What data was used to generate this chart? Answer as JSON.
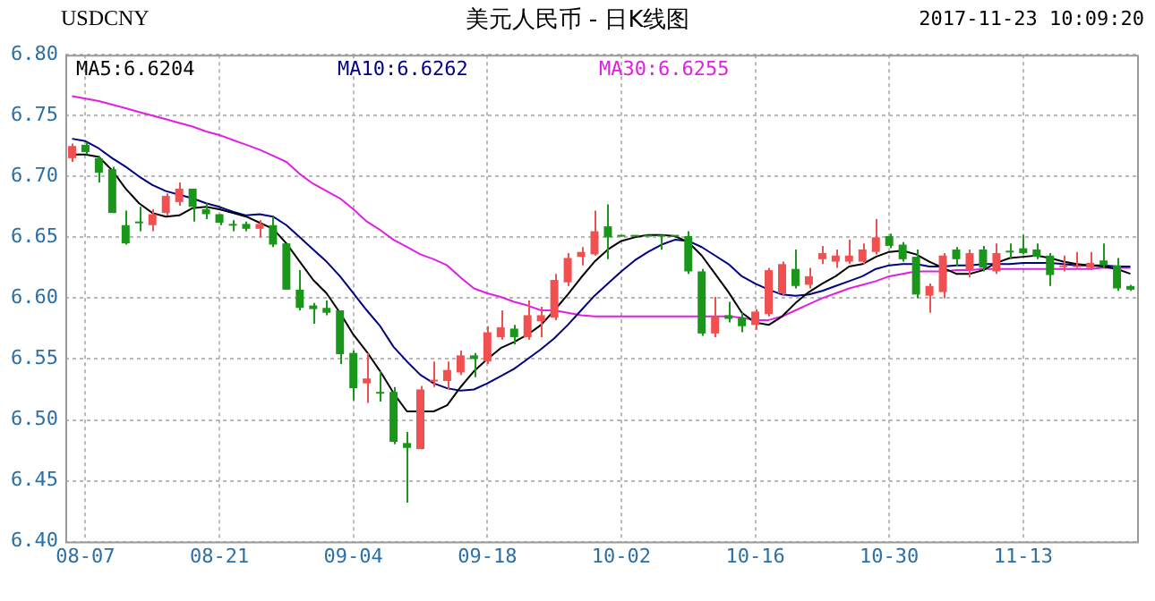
{
  "chart_data": {
    "type": "candlestick",
    "title": "美元人民币 - 日K线图",
    "annotations": [
      "USDCNY",
      "2017-11-23 10:09:20"
    ],
    "categories": [
      null,
      "08-07",
      null,
      null,
      null,
      null,
      null,
      null,
      null,
      null,
      null,
      "08-21",
      null,
      null,
      null,
      null,
      null,
      null,
      null,
      null,
      null,
      "09-04",
      null,
      null,
      null,
      null,
      null,
      null,
      null,
      null,
      null,
      "09-18",
      null,
      null,
      null,
      null,
      null,
      null,
      null,
      null,
      null,
      "10-02",
      null,
      null,
      null,
      null,
      null,
      null,
      null,
      null,
      null,
      "10-16",
      null,
      null,
      null,
      null,
      null,
      null,
      null,
      null,
      null,
      "10-30",
      null,
      null,
      null,
      null,
      null,
      null,
      null,
      null,
      null,
      "11-13",
      null,
      null,
      null,
      null,
      null,
      null,
      null,
      null
    ],
    "ohlc": [
      [
        6.715,
        6.727,
        6.712,
        6.725
      ],
      [
        6.726,
        6.728,
        6.718,
        6.72
      ],
      [
        6.715,
        6.717,
        6.695,
        6.703
      ],
      [
        6.706,
        6.708,
        6.67,
        6.67
      ],
      [
        6.66,
        6.672,
        6.644,
        6.645
      ],
      [
        6.663,
        6.675,
        6.655,
        6.662
      ],
      [
        6.66,
        6.673,
        6.655,
        6.669
      ],
      [
        6.67,
        6.686,
        6.668,
        6.684
      ],
      [
        6.679,
        6.695,
        6.676,
        6.69
      ],
      [
        6.69,
        6.69,
        6.663,
        6.675
      ],
      [
        6.673,
        6.678,
        6.665,
        6.669
      ],
      [
        6.669,
        6.669,
        6.66,
        6.662
      ],
      [
        6.661,
        6.664,
        6.655,
        6.66
      ],
      [
        6.661,
        6.663,
        6.655,
        6.657
      ],
      [
        6.657,
        6.664,
        6.65,
        6.661
      ],
      [
        6.66,
        6.667,
        6.642,
        6.644
      ],
      [
        6.645,
        6.645,
        6.607,
        6.607
      ],
      [
        6.607,
        6.623,
        6.59,
        6.592
      ],
      [
        6.594,
        6.596,
        6.579,
        6.591
      ],
      [
        6.592,
        6.598,
        6.586,
        6.588
      ],
      [
        6.59,
        6.59,
        6.546,
        6.554
      ],
      [
        6.555,
        6.557,
        6.516,
        6.526
      ],
      [
        6.53,
        6.555,
        6.514,
        6.534
      ],
      [
        6.523,
        6.54,
        6.515,
        6.522
      ],
      [
        6.523,
        6.527,
        6.48,
        6.482
      ],
      [
        6.481,
        6.49,
        6.432,
        6.477
      ],
      [
        6.476,
        6.528,
        6.476,
        6.525
      ],
      [
        6.532,
        6.548,
        6.527,
        6.533
      ],
      [
        6.532,
        6.548,
        6.525,
        6.541
      ],
      [
        6.539,
        6.557,
        6.537,
        6.553
      ],
      [
        6.553,
        6.555,
        6.535,
        6.55
      ],
      [
        6.548,
        6.577,
        6.546,
        6.572
      ],
      [
        6.568,
        6.59,
        6.566,
        6.576
      ],
      [
        6.575,
        6.578,
        6.562,
        6.568
      ],
      [
        6.568,
        6.598,
        6.566,
        6.586
      ],
      [
        6.581,
        6.593,
        6.568,
        6.586
      ],
      [
        6.584,
        6.62,
        6.582,
        6.615
      ],
      [
        6.613,
        6.637,
        6.61,
        6.633
      ],
      [
        6.634,
        6.642,
        6.627,
        6.638
      ],
      [
        6.636,
        6.672,
        6.635,
        6.655
      ],
      [
        6.659,
        6.677,
        6.632,
        6.65
      ],
      [
        6.652,
        6.652,
        6.652,
        6.652
      ],
      [
        6.652,
        6.652,
        6.652,
        6.652
      ],
      [
        6.652,
        6.652,
        6.652,
        6.652
      ],
      [
        6.652,
        6.652,
        6.64,
        6.651
      ],
      [
        6.652,
        6.652,
        6.652,
        6.652
      ],
      [
        6.651,
        6.655,
        6.62,
        6.622
      ],
      [
        6.622,
        6.624,
        6.569,
        6.571
      ],
      [
        6.571,
        6.601,
        6.568,
        6.585
      ],
      [
        6.586,
        6.597,
        6.58,
        6.583
      ],
      [
        6.584,
        6.588,
        6.572,
        6.577
      ],
      [
        6.578,
        6.591,
        6.574,
        6.589
      ],
      [
        6.587,
        6.625,
        6.585,
        6.623
      ],
      [
        6.604,
        6.63,
        6.602,
        6.628
      ],
      [
        6.624,
        6.64,
        6.608,
        6.61
      ],
      [
        6.611,
        6.625,
        6.608,
        6.618
      ],
      [
        6.632,
        6.643,
        6.628,
        6.637
      ],
      [
        6.63,
        6.64,
        6.625,
        6.635
      ],
      [
        6.63,
        6.648,
        6.628,
        6.635
      ],
      [
        6.63,
        6.645,
        6.628,
        6.64
      ],
      [
        6.638,
        6.665,
        6.636,
        6.65
      ],
      [
        6.651,
        6.653,
        6.641,
        6.643
      ],
      [
        6.644,
        6.646,
        6.63,
        6.632
      ],
      [
        6.634,
        6.64,
        6.6,
        6.603
      ],
      [
        6.602,
        6.612,
        6.588,
        6.61
      ],
      [
        6.605,
        6.637,
        6.6,
        6.635
      ],
      [
        6.64,
        6.642,
        6.626,
        6.632
      ],
      [
        6.623,
        6.64,
        6.617,
        6.637
      ],
      [
        6.64,
        6.643,
        6.622,
        6.625
      ],
      [
        6.622,
        6.645,
        6.62,
        6.637
      ],
      [
        6.639,
        6.645,
        6.632,
        6.638
      ],
      [
        6.641,
        6.652,
        6.636,
        6.637
      ],
      [
        6.64,
        6.645,
        6.632,
        6.634
      ],
      [
        6.635,
        6.637,
        6.61,
        6.619
      ],
      [
        6.626,
        6.635,
        6.622,
        6.627
      ],
      [
        6.626,
        6.638,
        6.625,
        6.627
      ],
      [
        6.625,
        6.638,
        6.623,
        6.629
      ],
      [
        6.631,
        6.645,
        6.625,
        6.627
      ],
      [
        6.627,
        6.633,
        6.606,
        6.608
      ],
      [
        6.61,
        6.611,
        6.606,
        6.607
      ]
    ],
    "colors": [
      "#f05050",
      "#1a961a",
      "#1a961a",
      "#1a961a",
      "#1a961a",
      "#1a961a",
      "#f05050",
      "#f05050",
      "#f05050",
      "#1a961a",
      "#1a961a",
      "#1a961a",
      "#1a961a",
      "#1a961a",
      "#f05050",
      "#1a961a",
      "#1a961a",
      "#1a961a",
      "#1a961a",
      "#1a961a",
      "#1a961a",
      "#1a961a",
      "#f05050",
      "#1a961a",
      "#1a961a",
      "#1a961a",
      "#f05050",
      "#f05050",
      "#f05050",
      "#f05050",
      "#1a961a",
      "#f05050",
      "#f05050",
      "#1a961a",
      "#f05050",
      "#f05050",
      "#f05050",
      "#f05050",
      "#f05050",
      "#f05050",
      "#1a961a",
      "#1a961a",
      "#1a961a",
      "#1a961a",
      "#1a961a",
      "#1a961a",
      "#1a961a",
      "#1a961a",
      "#f05050",
      "#1a961a",
      "#1a961a",
      "#f05050",
      "#f05050",
      "#f05050",
      "#1a961a",
      "#f05050",
      "#f05050",
      "#f05050",
      "#f05050",
      "#f05050",
      "#f05050",
      "#1a961a",
      "#1a961a",
      "#1a961a",
      "#f05050",
      "#f05050",
      "#1a961a",
      "#f05050",
      "#1a961a",
      "#f05050",
      "#1a961a",
      "#1a961a",
      "#1a961a",
      "#1a961a",
      "#f05050",
      "#f05050",
      "#f05050",
      "#1a961a",
      "#1a961a",
      "#1a961a"
    ],
    "series": [
      {
        "type": "line",
        "name": "MA5:6.6204",
        "color": "#000000",
        "values": [
          6.718,
          6.718,
          6.716,
          6.705,
          6.69,
          6.678,
          6.67,
          6.667,
          6.668,
          6.674,
          6.675,
          6.673,
          6.67,
          6.667,
          6.662,
          6.657,
          6.645,
          6.63,
          6.615,
          6.604,
          6.588,
          6.57,
          6.556,
          6.54,
          6.522,
          6.507,
          6.507,
          6.507,
          6.512,
          6.527,
          6.54,
          6.55,
          6.559,
          6.564,
          6.57,
          6.578,
          6.59,
          6.603,
          6.617,
          6.63,
          6.64,
          6.647,
          6.65,
          6.652,
          6.652,
          6.651,
          6.646,
          6.635,
          6.62,
          6.605,
          6.588,
          6.58,
          6.578,
          6.585,
          6.596,
          6.605,
          6.612,
          6.618,
          6.626,
          6.628,
          6.634,
          6.638,
          6.639,
          6.636,
          6.63,
          6.625,
          6.62,
          6.62,
          6.623,
          6.629,
          6.633,
          6.634,
          6.635,
          6.633,
          6.63,
          6.628,
          6.627,
          6.626,
          6.624,
          6.62
        ]
      },
      {
        "type": "line",
        "name": "MA10:6.6262",
        "color": "#000080",
        "values": [
          6.731,
          6.729,
          6.723,
          6.715,
          6.708,
          6.7,
          6.693,
          6.688,
          6.685,
          6.682,
          6.678,
          6.675,
          6.671,
          6.668,
          6.669,
          6.667,
          6.66,
          6.65,
          6.64,
          6.63,
          6.618,
          6.604,
          6.59,
          6.577,
          6.56,
          6.548,
          6.537,
          6.53,
          6.526,
          6.524,
          6.525,
          6.53,
          6.536,
          6.542,
          6.55,
          6.558,
          6.567,
          6.578,
          6.59,
          6.602,
          6.612,
          6.622,
          6.631,
          6.638,
          6.644,
          6.648,
          6.647,
          6.642,
          6.635,
          6.628,
          6.618,
          6.612,
          6.607,
          6.603,
          6.602,
          6.603,
          6.606,
          6.61,
          6.614,
          6.618,
          6.624,
          6.627,
          6.628,
          6.628,
          6.626,
          6.626,
          6.627,
          6.627,
          6.628,
          6.628,
          6.628,
          6.629,
          6.629,
          6.629,
          6.628,
          6.627,
          6.627,
          6.627,
          6.626,
          6.626
        ]
      },
      {
        "type": "line",
        "name": "MA30:6.6255",
        "color": "#e020e0",
        "values": [
          6.766,
          6.764,
          6.762,
          6.759,
          6.756,
          6.753,
          6.75,
          6.747,
          6.744,
          6.741,
          6.737,
          6.734,
          6.73,
          6.726,
          6.722,
          6.717,
          6.712,
          6.702,
          6.694,
          6.688,
          6.682,
          6.673,
          6.663,
          6.656,
          6.648,
          6.642,
          6.636,
          6.632,
          6.627,
          6.617,
          6.608,
          6.604,
          6.601,
          6.597,
          6.594,
          6.59,
          6.59,
          6.588,
          6.586,
          6.585,
          6.585,
          6.585,
          6.585,
          6.585,
          6.585,
          6.585,
          6.585,
          6.585,
          6.585,
          6.585,
          6.584,
          6.582,
          6.582,
          6.585,
          6.59,
          6.595,
          6.6,
          6.604,
          6.608,
          6.611,
          6.614,
          6.618,
          6.62,
          6.622,
          6.622,
          6.622,
          6.623,
          6.623,
          6.624,
          6.624,
          6.624,
          6.624,
          6.624,
          6.624,
          6.624,
          6.624,
          6.624,
          6.625,
          6.625,
          6.625
        ]
      }
    ],
    "ylim": [
      6.4,
      6.8
    ],
    "yticks": [
      {
        "value": 6.4,
        "label": "6.40"
      },
      {
        "value": 6.45,
        "label": "6.45"
      },
      {
        "value": 6.5,
        "label": "6.50"
      },
      {
        "value": 6.55,
        "label": "6.55"
      },
      {
        "value": 6.6,
        "label": "6.60"
      },
      {
        "value": 6.65,
        "label": "6.65"
      },
      {
        "value": 6.7,
        "label": "6.70"
      },
      {
        "value": 6.75,
        "label": "6.75"
      },
      {
        "value": 6.8,
        "label": "6.80"
      }
    ],
    "grid": true,
    "legend": "top left",
    "marker": "none",
    "line_style": "solid"
  }
}
